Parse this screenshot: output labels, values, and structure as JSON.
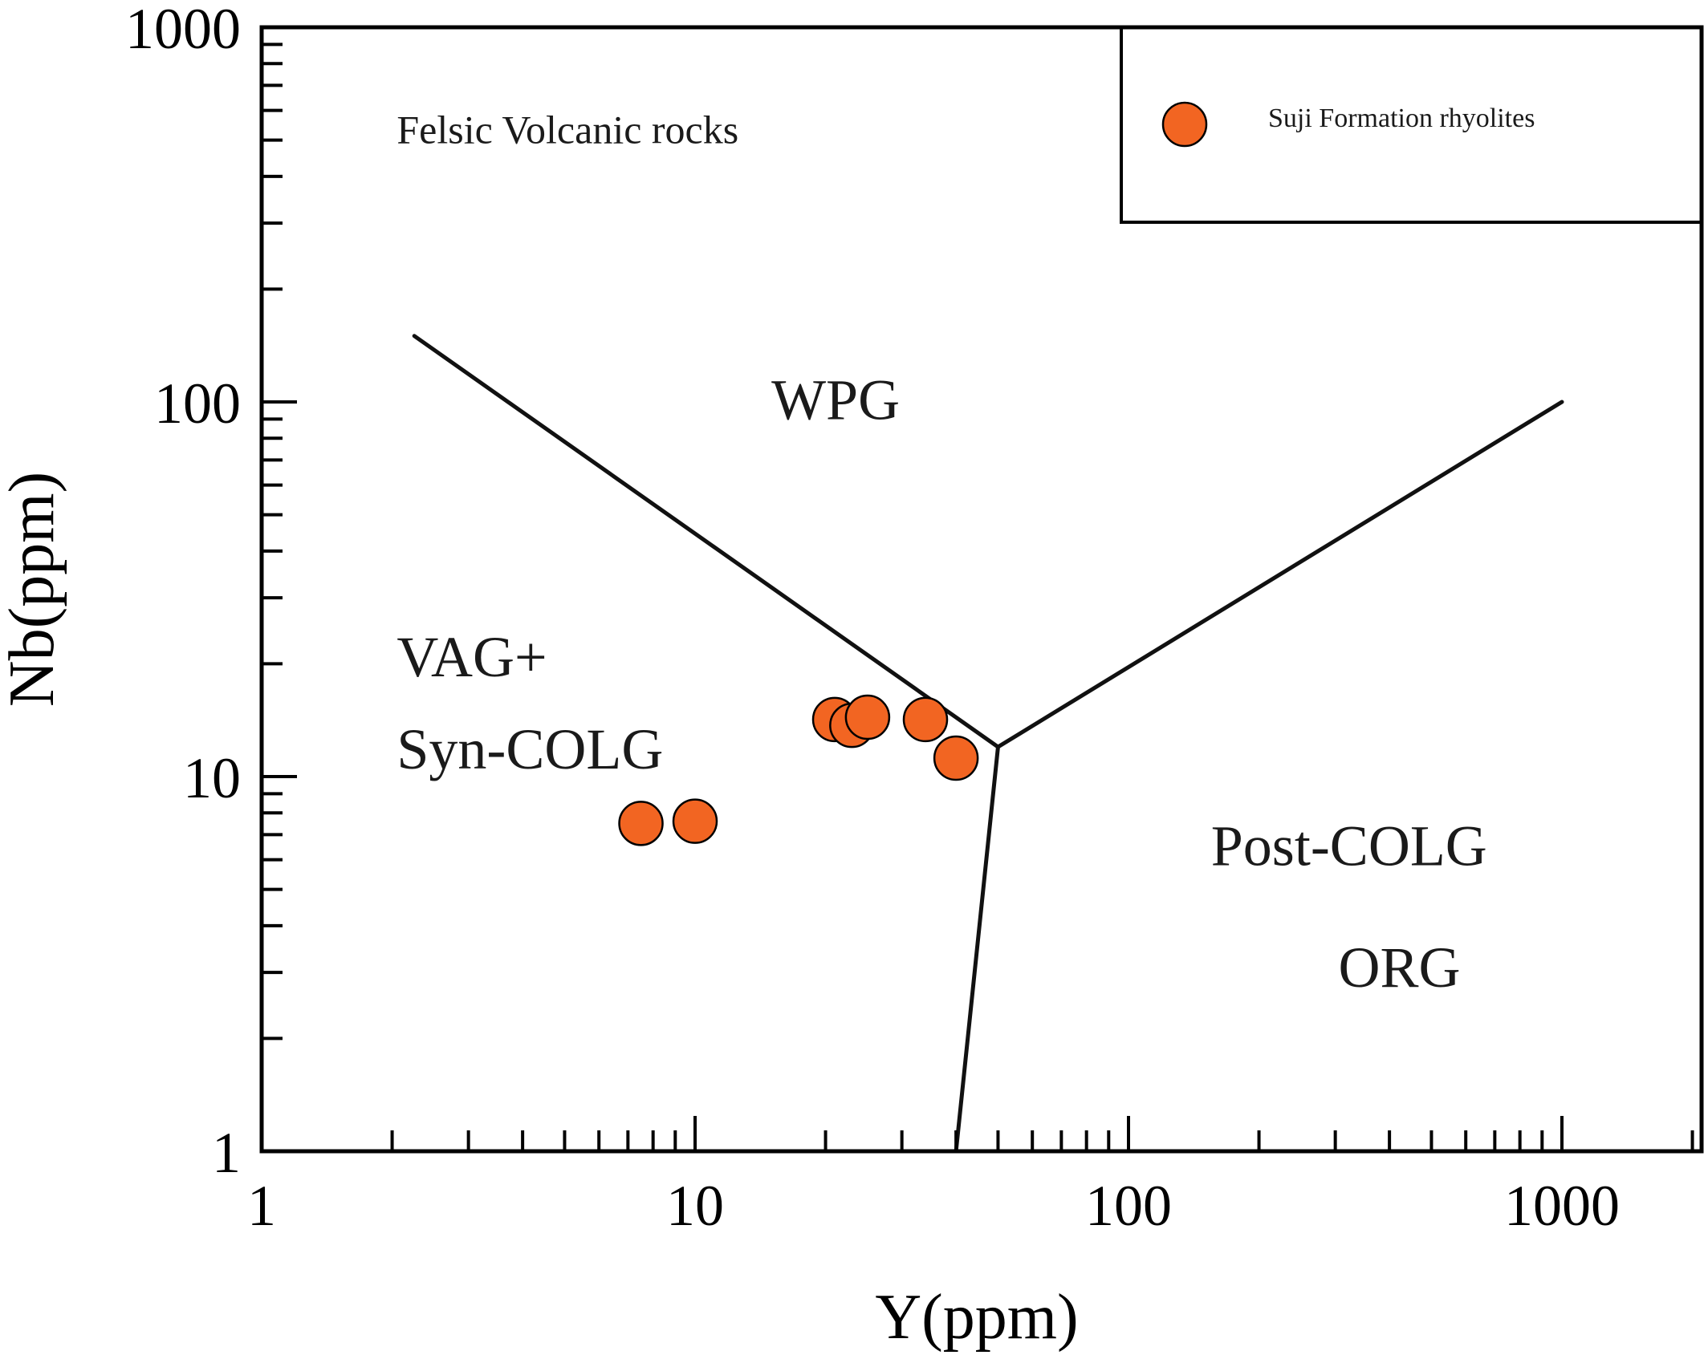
{
  "chart_data": {
    "type": "scatter",
    "xlabel": "Y(ppm)",
    "ylabel": "Nb(ppm)",
    "xscale": "log",
    "yscale": "log",
    "xlim": [
      1,
      2000
    ],
    "ylim": [
      1,
      1000
    ],
    "x_ticks": [
      1,
      10,
      100,
      1000
    ],
    "x_tick_labels": [
      "1",
      "10",
      "100",
      "1000"
    ],
    "y_ticks": [
      1,
      10,
      100,
      1000
    ],
    "y_tick_labels": [
      "1",
      "10",
      "100",
      "1000"
    ],
    "grid": false,
    "legend_position": "top-right",
    "series": [
      {
        "name": "Suji Formation rhyolites",
        "color": "#f26522",
        "marker": "circle",
        "points": [
          {
            "x": 7.5,
            "y": 7.5
          },
          {
            "x": 10,
            "y": 7.6
          },
          {
            "x": 21,
            "y": 14.2
          },
          {
            "x": 23,
            "y": 13.7
          },
          {
            "x": 25,
            "y": 14.4
          },
          {
            "x": 34,
            "y": 14.2
          },
          {
            "x": 40,
            "y": 11.2
          }
        ]
      }
    ],
    "boundaries": [
      {
        "points": [
          [
            2.25,
            150
          ],
          [
            50,
            12
          ]
        ]
      },
      {
        "points": [
          [
            50,
            12
          ],
          [
            1000,
            100
          ]
        ]
      },
      {
        "points": [
          [
            50,
            12
          ],
          [
            40,
            1
          ]
        ]
      }
    ],
    "annotations": [
      {
        "text": "Felsic Volcanic rocks",
        "x": 2.05,
        "y": 490,
        "style": "small"
      },
      {
        "text": "WPG",
        "x": 15,
        "y": 90,
        "style": "large"
      },
      {
        "text": "VAG+",
        "x": 2.05,
        "y": 18.5,
        "style": "large"
      },
      {
        "text": "Syn-COLG",
        "x": 2.05,
        "y": 10.5,
        "style": "large"
      },
      {
        "text": "Post-COLG",
        "x": 155,
        "y": 5.8,
        "style": "large"
      },
      {
        "text": "ORG",
        "x": 305,
        "y": 2.75,
        "style": "large"
      }
    ]
  }
}
